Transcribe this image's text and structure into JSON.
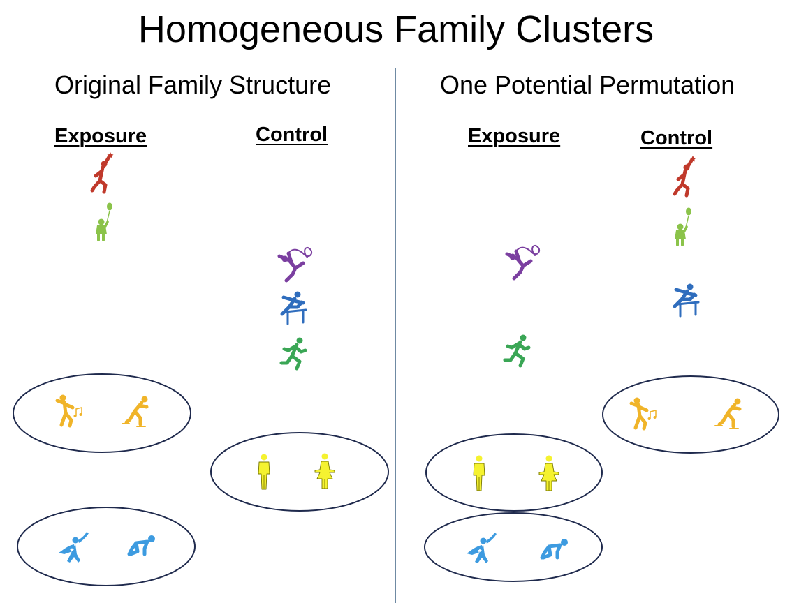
{
  "title": "Homogeneous Family Clusters",
  "left_panel": {
    "title": "Original Family Structure",
    "exposure_label": "Exposure",
    "control_label": "Control"
  },
  "right_panel": {
    "title": "One Potential Permutation",
    "exposure_label": "Exposure",
    "control_label": "Control"
  },
  "colors": {
    "red": "#c0392b",
    "light_green": "#8bc34a",
    "purple": "#7b3fa0",
    "blue": "#2f6dbd",
    "green": "#3aa655",
    "gold": "#f0b429",
    "yellow": "#f5f230",
    "light_blue": "#3d9be0",
    "cluster_stroke": "#1f2a4d",
    "divider": "#6f8aa3"
  }
}
